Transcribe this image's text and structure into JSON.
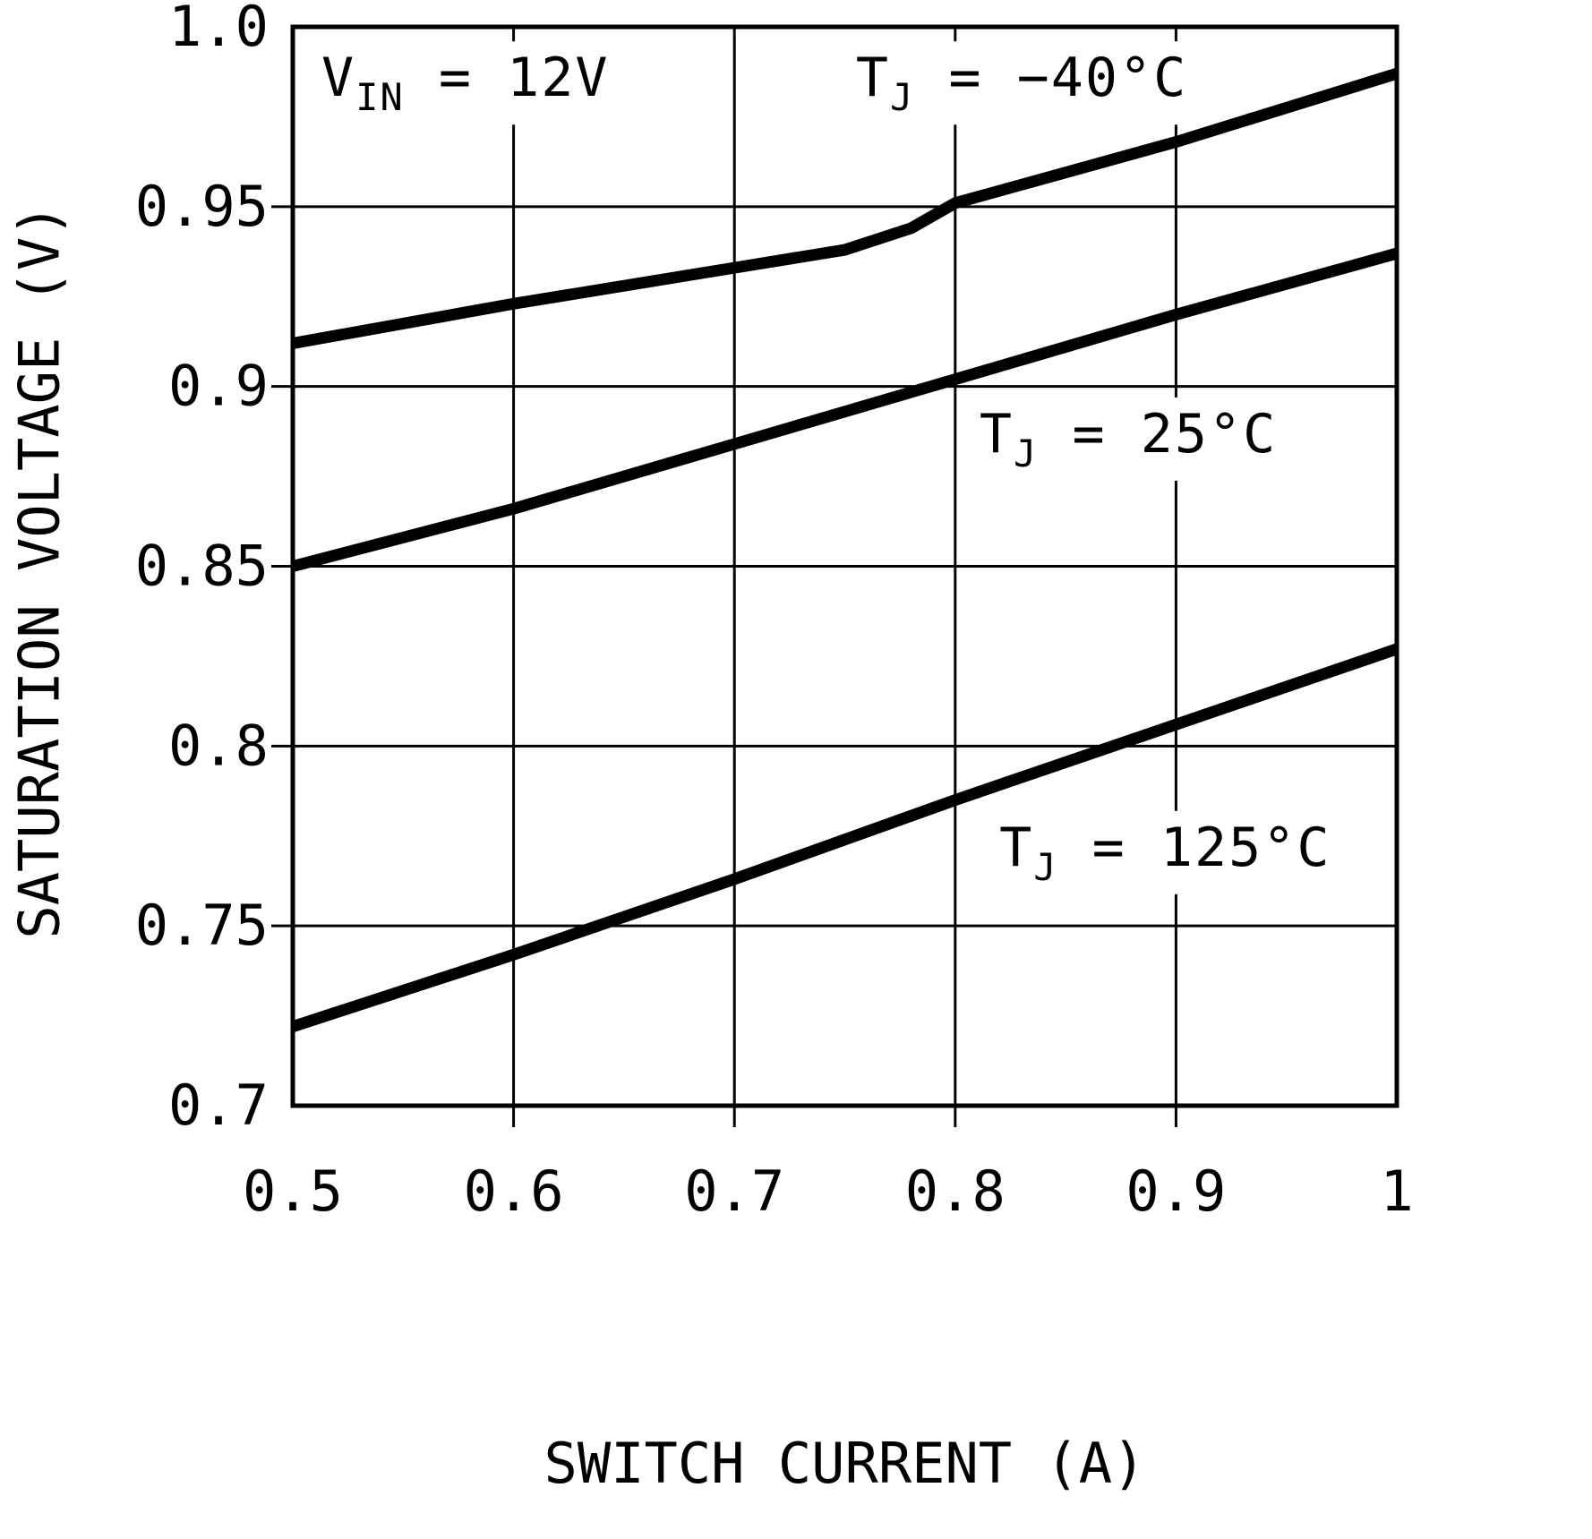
{
  "colors": {
    "line": "#000000",
    "grid": "#000000",
    "background": "#ffffff",
    "text": "#000000"
  },
  "chart_data": {
    "type": "line",
    "title": "",
    "xlabel": "SWITCH CURRENT (A)",
    "ylabel": "SATURATION VOLTAGE (V)",
    "xlim": [
      0.5,
      1.0
    ],
    "ylim": [
      0.7,
      1.0
    ],
    "grid": true,
    "legend_position": "none",
    "x_ticks": [
      0.5,
      0.6,
      0.7,
      0.8,
      0.9,
      1.0
    ],
    "x_tick_labels": [
      "0.5",
      "0.6",
      "0.7",
      "0.8",
      "0.9",
      "1"
    ],
    "y_ticks": [
      0.7,
      0.75,
      0.8,
      0.85,
      0.9,
      0.95,
      1.0
    ],
    "y_tick_labels": [
      "0.7",
      "0.75",
      "0.8",
      "0.85",
      "0.9",
      "0.95",
      "1.0"
    ],
    "series": [
      {
        "name": "TJ = -40°C",
        "x": [
          0.5,
          0.6,
          0.7,
          0.75,
          0.78,
          0.8,
          0.9,
          1.0
        ],
        "y": [
          0.912,
          0.923,
          0.933,
          0.938,
          0.944,
          0.951,
          0.968,
          0.987
        ]
      },
      {
        "name": "TJ = 25°C",
        "x": [
          0.5,
          0.6,
          0.7,
          0.8,
          0.9,
          1.0
        ],
        "y": [
          0.85,
          0.866,
          0.884,
          0.902,
          0.92,
          0.937
        ]
      },
      {
        "name": "TJ = 125°C",
        "x": [
          0.5,
          0.6,
          0.7,
          0.8,
          0.9,
          1.0
        ],
        "y": [
          0.722,
          0.742,
          0.763,
          0.785,
          0.806,
          0.827
        ]
      }
    ],
    "annotations": [
      {
        "id": "vin",
        "base": "V",
        "sub": "IN",
        "rest": " = 12V",
        "x": 0.513,
        "y": 0.986
      },
      {
        "id": "tj-m40",
        "base": "T",
        "sub": "J",
        "rest": " = −40°C",
        "x": 0.755,
        "y": 0.986
      },
      {
        "id": "tj-25",
        "base": "T",
        "sub": "J",
        "rest": " = 25°C",
        "x": 0.811,
        "y": 0.887
      },
      {
        "id": "tj-125",
        "base": "T",
        "sub": "J",
        "rest": " = 125°C",
        "x": 0.82,
        "y": 0.772
      }
    ]
  }
}
